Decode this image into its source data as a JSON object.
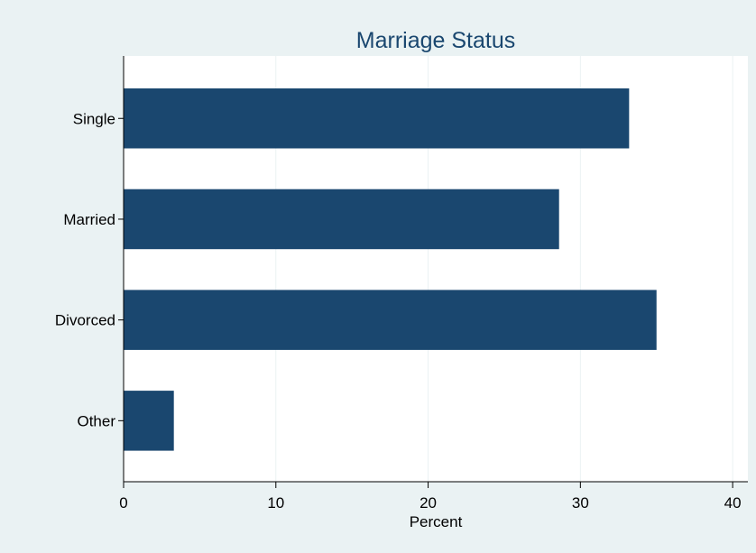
{
  "chart_data": {
    "type": "bar",
    "orientation": "horizontal",
    "title": "Marriage Status",
    "xlabel": "Percent",
    "ylabel": "",
    "categories": [
      "Single",
      "Married",
      "Divorced",
      "Other"
    ],
    "values": [
      33.2,
      28.6,
      35.0,
      3.3
    ],
    "xlim": [
      0,
      41
    ],
    "xticks": [
      "0",
      "10",
      "20",
      "30",
      "40"
    ],
    "grid": true,
    "legend": "none",
    "colors": {
      "bar": "#1a476f",
      "plot_background": "#ffffff",
      "outer_background": "#eaf2f3",
      "grid": "#eaf2f3",
      "title": "#1a476f",
      "text": "#000000"
    }
  }
}
